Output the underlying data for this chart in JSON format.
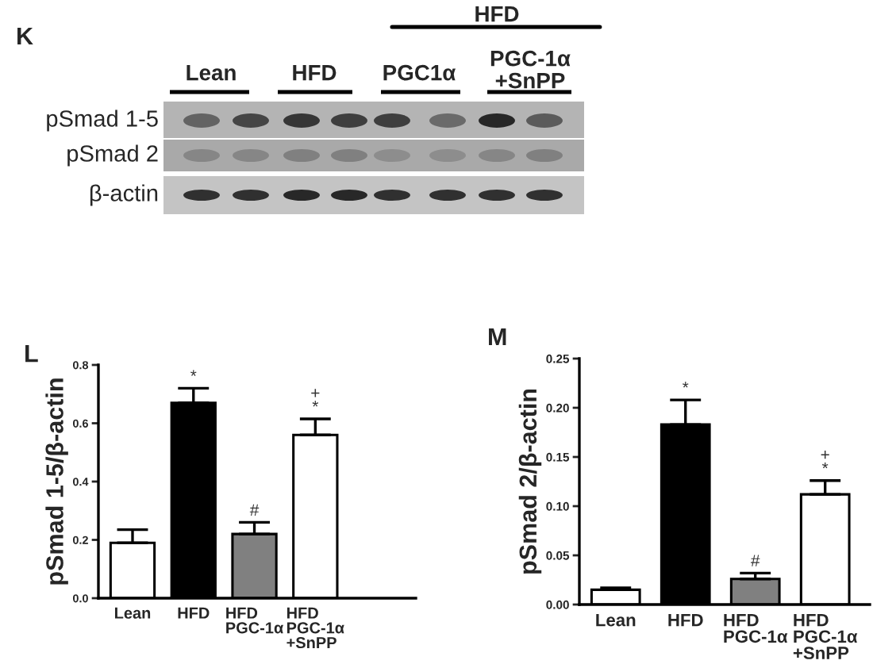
{
  "chart_data": [
    {
      "type": "other",
      "title": "K",
      "annotations": [
        "HFD",
        "Lean",
        "HFD",
        "PGC1α",
        "PGC-1α\n+SnPP",
        "pSmad 1-5",
        "pSmad 2",
        "β-actin"
      ]
    },
    {
      "type": "bar",
      "title": "L",
      "ylabel": "pSmad 1-5/β-actin",
      "categories": [
        "Lean",
        "HFD",
        "HFD\nPGC-1α",
        "HFD\nPGC-1α\n+SnPP"
      ],
      "values": [
        0.19,
        0.67,
        0.22,
        0.56
      ],
      "errors": [
        [
          0.19,
          0.235
        ],
        [
          0.67,
          0.72
        ],
        [
          0.22,
          0.26
        ],
        [
          0.56,
          0.615
        ]
      ],
      "colors": [
        "#ffffff",
        "#000000",
        "#808080",
        "#ffffff"
      ],
      "ylim": [
        0,
        0.8
      ],
      "yticks": [
        {
          "value": 0,
          "label": "0.0"
        },
        0.2,
        0.4,
        0.6,
        0.8
      ],
      "annotations": [
        {
          "text": "*",
          "x": "HFD",
          "y": 0.72
        },
        {
          "text": "#",
          "x": "HFD\nPGC-1α",
          "y": 0.26
        },
        {
          "text": "+\n*",
          "x": "HFD\nPGC-1α\n+SnPP",
          "y": 0.615
        }
      ]
    },
    {
      "type": "bar",
      "title": "M",
      "ylabel": "pSmad 2/β-actin",
      "categories": [
        "Lean",
        "HFD",
        "HFD\nPGC-1α",
        "HFD\nPGC-1α\n+SnPP"
      ],
      "values": [
        0.015,
        0.183,
        0.026,
        0.112
      ],
      "errors": [
        [
          0.015,
          0.017
        ],
        [
          0.183,
          0.208
        ],
        [
          0.026,
          0.032
        ],
        [
          0.112,
          0.126
        ]
      ],
      "colors": [
        "#ffffff",
        "#000000",
        "#808080",
        "#ffffff"
      ],
      "ylim": [
        0,
        0.25
      ],
      "yticks": [
        {
          "value": 0,
          "label": "0.00"
        },
        0.05,
        {
          "value": 0.1,
          "label": "0.10"
        },
        0.15,
        {
          "value": 0.2,
          "label": "0.20"
        },
        0.25
      ],
      "annotations": [
        {
          "text": "*",
          "x": "HFD",
          "y": 0.208
        },
        {
          "text": "#",
          "x": "HFD\nPGC-1α",
          "y": 0.032
        },
        {
          "text": "+\n*",
          "x": "HFD\nPGC-1α\n+SnPP",
          "y": 0.126
        }
      ]
    }
  ]
}
